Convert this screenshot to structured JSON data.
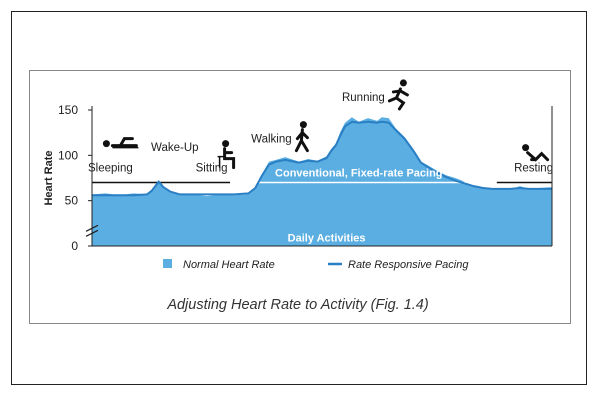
{
  "chart_data": {
    "type": "area",
    "title": "",
    "caption": "Adjusting Heart Rate to Activity (Fig. 1.4)",
    "ylabel": "Heart Rate",
    "xlabel": "",
    "ylim": [
      0,
      150
    ],
    "y_axis_break": true,
    "yticks": [
      "150",
      "100",
      "50",
      "0"
    ],
    "ytick_values": [
      150,
      100,
      50,
      0
    ],
    "grid": false,
    "legend_position": "bottom",
    "x_range": [
      0,
      100
    ],
    "series": [
      {
        "name": "Normal Heart Rate",
        "kind": "area",
        "color": "#5aaee2",
        "x": [
          0,
          3,
          6,
          9,
          12,
          13,
          14.5,
          15.5,
          17,
          19,
          22,
          25,
          28,
          31,
          34,
          35.5,
          37,
          38.5,
          40,
          42,
          45,
          47,
          49,
          51,
          52,
          53,
          54,
          55,
          56.5,
          58,
          60,
          62,
          63,
          64.5,
          66,
          68,
          70,
          71.5,
          73,
          75,
          77,
          79,
          81,
          83,
          85,
          87,
          89,
          91,
          93,
          95,
          97,
          100
        ],
        "values": [
          57,
          58,
          56,
          58,
          57,
          62,
          73,
          66,
          61,
          56,
          57,
          55,
          57,
          56,
          57,
          65,
          80,
          93,
          95,
          98,
          93,
          96,
          94,
          99,
          107,
          113,
          126,
          136,
          142,
          137,
          141,
          138,
          142,
          141,
          130,
          120,
          106,
          93,
          89,
          83,
          78,
          75,
          71,
          66,
          65,
          62,
          64,
          62,
          66,
          63,
          64,
          65
        ]
      },
      {
        "name": "Rate Responsive Pacing",
        "kind": "line",
        "color": "#2a7fc4",
        "x": [
          0,
          3,
          6,
          9,
          12,
          13,
          14.5,
          15.5,
          17,
          19,
          22,
          25,
          28,
          31,
          34,
          35.5,
          37,
          38.5,
          40,
          42,
          45,
          47,
          49,
          51,
          52,
          53,
          54,
          55,
          56.5,
          58,
          60,
          62,
          63,
          64.5,
          66,
          68,
          70,
          71.5,
          73,
          75,
          77,
          79,
          81,
          83,
          85,
          87,
          89,
          91,
          93,
          95,
          97,
          100
        ],
        "values": [
          56,
          56,
          56,
          56,
          57,
          61,
          71,
          65,
          60,
          57,
          57,
          57,
          57,
          57,
          58,
          64,
          78,
          90,
          93,
          95,
          92,
          94,
          93,
          97,
          105,
          111,
          122,
          132,
          137,
          136,
          137,
          136,
          137,
          136,
          128,
          118,
          104,
          92,
          87,
          81,
          76,
          72,
          69,
          66,
          64,
          63,
          63,
          63,
          64,
          63,
          63,
          63
        ]
      }
    ],
    "reference_line": {
      "label": "Conventional, Fixed-rate Pacing",
      "value": 70
    },
    "area_label": "Daily Activities",
    "activities": [
      {
        "label": "Sleeping",
        "icon": "sleeping-person-icon",
        "x": 4,
        "y": 82
      },
      {
        "label": "Wake-Up",
        "icon": "",
        "x": 18,
        "y": 105
      },
      {
        "label": "Sitting",
        "icon": "sitting-person-icon",
        "x": 26,
        "y": 82
      },
      {
        "label": "Walking",
        "icon": "walking-person-icon",
        "x": 39,
        "y": 114
      },
      {
        "label": "Running",
        "icon": "running-person-icon",
        "x": 59,
        "y": 160
      },
      {
        "label": "Resting",
        "icon": "resting-person-icon",
        "x": 96,
        "y": 82
      }
    ]
  },
  "legend": [
    {
      "label": "Normal Heart Rate",
      "marker": "square",
      "color": "#5aaee2"
    },
    {
      "label": "Rate Responsive Pacing",
      "marker": "line",
      "color": "#2a7fc4"
    }
  ]
}
